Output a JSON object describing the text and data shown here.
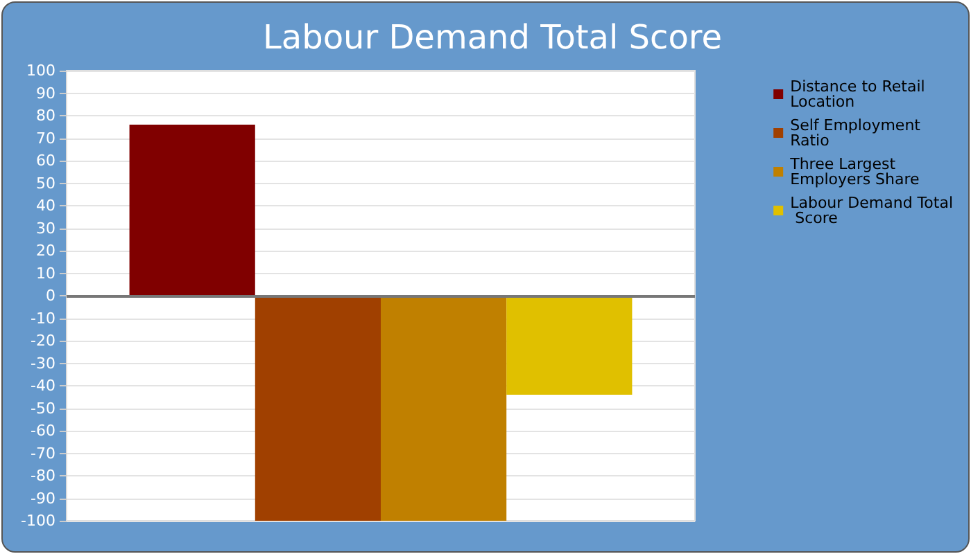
{
  "chart_data": {
    "type": "bar",
    "title": "Labour Demand Total Score",
    "categories": [
      null
    ],
    "series": [
      {
        "name": "Distance to Retail Location",
        "color": "#800000",
        "values": [
          76
        ]
      },
      {
        "name": "Self Employment Ratio",
        "color": "#a04000",
        "values": [
          -100
        ]
      },
      {
        "name": "Three Largest Employers Share",
        "color": "#c08000",
        "values": [
          -100
        ]
      },
      {
        "name": "Labour Demand Total Score",
        "color": "#e0c000",
        "values": [
          -44
        ]
      }
    ],
    "ylim": [
      -100,
      100
    ],
    "yticks": [
      -100,
      -90,
      -80,
      -70,
      -60,
      -50,
      -40,
      -30,
      -20,
      -10,
      0,
      10,
      20,
      30,
      40,
      50,
      60,
      70,
      80,
      90,
      100
    ],
    "grid": "y",
    "legend": "right"
  }
}
